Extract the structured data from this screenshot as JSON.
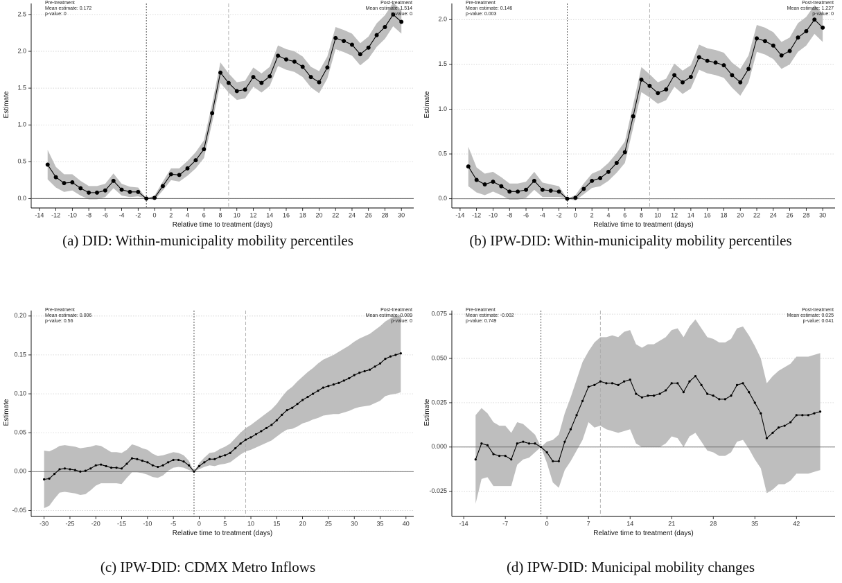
{
  "chart_data": [
    {
      "type": "line",
      "caption": "(a) DID: Within-municipality mobility percentiles",
      "ylabel": "Estimate",
      "xlabel": "Relative time to treatment (days)",
      "annotations": {
        "pre": [
          "Pre-treatment",
          "Mean estimate: 0.172",
          "p-value: 0"
        ],
        "post": [
          "Post-treatment",
          "Mean estimate: 1.514",
          "p-value: 0"
        ]
      },
      "xlim": [
        -15,
        31.5
      ],
      "xticks": [
        -14,
        -12,
        -10,
        -8,
        -6,
        -4,
        -2,
        0,
        2,
        4,
        6,
        8,
        10,
        12,
        14,
        16,
        18,
        20,
        22,
        24,
        26,
        28,
        30
      ],
      "ylim": [
        -0.1,
        2.65
      ],
      "yticks": [
        {
          "value": 0,
          "label": "0.0"
        },
        0.5,
        {
          "value": 1,
          "label": "1.0"
        },
        1.5,
        {
          "value": 2,
          "label": "2.0"
        },
        2.5
      ],
      "grid": true,
      "hline": 0,
      "vlines": [
        -1,
        9
      ],
      "marker_size": 3,
      "line_color": "#000000",
      "band_color": "#bebebe",
      "series": [
        {
          "x": [
            -13,
            -12,
            -11,
            -10,
            -9,
            -8,
            -7,
            -6,
            -5,
            -4,
            -3,
            -2,
            -1,
            0,
            1,
            2,
            3,
            4,
            5,
            6,
            7,
            8,
            9,
            10,
            11,
            12,
            13,
            14,
            15,
            16,
            17,
            18,
            19,
            20,
            21,
            22,
            23,
            24,
            25,
            26,
            27,
            28,
            29,
            30
          ],
          "values": [
            0.46,
            0.29,
            0.21,
            0.22,
            0.14,
            0.08,
            0.08,
            0.11,
            0.24,
            0.12,
            0.09,
            0.09,
            0.0,
            0.01,
            0.17,
            0.33,
            0.32,
            0.41,
            0.52,
            0.67,
            1.16,
            1.71,
            1.57,
            1.46,
            1.48,
            1.65,
            1.57,
            1.66,
            1.94,
            1.89,
            1.86,
            1.79,
            1.65,
            1.58,
            1.78,
            2.18,
            2.14,
            2.09,
            1.96,
            2.05,
            2.22,
            2.33,
            2.5,
            2.4
          ],
          "ci": [
            0.2,
            0.14,
            0.12,
            0.11,
            0.1,
            0.09,
            0.09,
            0.09,
            0.1,
            0.08,
            0.07,
            0.06,
            0.0,
            0.03,
            0.06,
            0.08,
            0.09,
            0.1,
            0.11,
            0.12,
            0.13,
            0.14,
            0.13,
            0.12,
            0.12,
            0.13,
            0.13,
            0.13,
            0.14,
            0.14,
            0.14,
            0.14,
            0.14,
            0.15,
            0.15,
            0.15,
            0.15,
            0.15,
            0.15,
            0.15,
            0.16,
            0.16,
            0.16,
            0.16
          ]
        }
      ]
    },
    {
      "type": "line",
      "caption": "(b) IPW-DID: Within-municipality mobility percentiles",
      "ylabel": "Estimate",
      "xlabel": "Relative time to treatment (days)",
      "annotations": {
        "pre": [
          "Pre-treatment",
          "Mean estimate: 0.146",
          "p-value: 0.003"
        ],
        "post": [
          "Post-treatment",
          "Mean estimate: 1.227",
          "p-value: 0"
        ]
      },
      "xlim": [
        -15,
        31.5
      ],
      "xticks": [
        -14,
        -12,
        -10,
        -8,
        -6,
        -4,
        -2,
        0,
        2,
        4,
        6,
        8,
        10,
        12,
        14,
        16,
        18,
        20,
        22,
        24,
        26,
        28,
        30
      ],
      "ylim": [
        -0.08,
        2.18
      ],
      "yticks": [
        {
          "value": 0,
          "label": "0.0"
        },
        0.5,
        {
          "value": 1,
          "label": "1.0"
        },
        1.5,
        {
          "value": 2,
          "label": "2.0"
        }
      ],
      "grid": true,
      "hline": 0,
      "vlines": [
        -1,
        9
      ],
      "marker_size": 3,
      "line_color": "#000000",
      "band_color": "#bebebe",
      "series": [
        {
          "x": [
            -13,
            -12,
            -11,
            -10,
            -9,
            -8,
            -7,
            -6,
            -5,
            -4,
            -3,
            -2,
            -1,
            0,
            1,
            2,
            3,
            4,
            5,
            6,
            7,
            8,
            9,
            10,
            11,
            12,
            13,
            14,
            15,
            16,
            17,
            18,
            19,
            20,
            21,
            22,
            23,
            24,
            25,
            26,
            27,
            28,
            29,
            30
          ],
          "values": [
            0.36,
            0.21,
            0.16,
            0.19,
            0.14,
            0.08,
            0.08,
            0.1,
            0.2,
            0.1,
            0.09,
            0.08,
            0.0,
            0.01,
            0.11,
            0.2,
            0.23,
            0.3,
            0.4,
            0.52,
            0.92,
            1.33,
            1.26,
            1.18,
            1.22,
            1.38,
            1.3,
            1.36,
            1.58,
            1.54,
            1.52,
            1.49,
            1.38,
            1.3,
            1.45,
            1.79,
            1.76,
            1.71,
            1.6,
            1.65,
            1.8,
            1.87,
            2.0,
            1.91
          ],
          "ci": [
            0.22,
            0.14,
            0.12,
            0.11,
            0.1,
            0.09,
            0.09,
            0.09,
            0.1,
            0.08,
            0.07,
            0.06,
            0.0,
            0.03,
            0.06,
            0.08,
            0.09,
            0.1,
            0.11,
            0.12,
            0.13,
            0.14,
            0.13,
            0.12,
            0.12,
            0.13,
            0.13,
            0.13,
            0.14,
            0.14,
            0.14,
            0.14,
            0.14,
            0.15,
            0.15,
            0.15,
            0.15,
            0.15,
            0.15,
            0.15,
            0.16,
            0.16,
            0.16,
            0.16
          ]
        }
      ]
    },
    {
      "type": "line",
      "caption": "(c) IPW-DID: CDMX Metro Inflows",
      "ylabel": "Estimate",
      "xlabel": "Relative time to treatment (days)",
      "annotations": {
        "pre": [
          "Pre-treatment",
          "Mean estimate: 0.006",
          "p-value: 0.56"
        ],
        "post": [
          "Post-treatment",
          "Mean estimate: 0.089",
          "p-value: 0"
        ]
      },
      "xlim": [
        -32.5,
        41.5
      ],
      "xticks": [
        -30,
        -25,
        -20,
        -15,
        -10,
        -5,
        0,
        5,
        10,
        15,
        20,
        25,
        30,
        35,
        40
      ],
      "ylim": [
        -0.055,
        0.207
      ],
      "yticks": [
        -0.05,
        {
          "value": 0,
          "label": "0.00"
        },
        0.05,
        {
          "value": 0.1,
          "label": "0.10"
        },
        0.15,
        {
          "value": 0.2,
          "label": "0.20"
        }
      ],
      "grid": true,
      "hline": 0,
      "vlines": [
        -1,
        9
      ],
      "marker_size": 1.6,
      "line_color": "#000000",
      "band_color": "#bebebe",
      "series": [
        {
          "x": [
            -30,
            -29,
            -28,
            -27,
            -26,
            -25,
            -24,
            -23,
            -22,
            -21,
            -20,
            -19,
            -18,
            -17,
            -16,
            -15,
            -14,
            -13,
            -12,
            -11,
            -10,
            -9,
            -8,
            -7,
            -6,
            -5,
            -4,
            -3,
            -2,
            -1,
            0,
            1,
            2,
            3,
            4,
            5,
            6,
            7,
            8,
            9,
            10,
            11,
            12,
            13,
            14,
            15,
            16,
            17,
            18,
            19,
            20,
            21,
            22,
            23,
            24,
            25,
            26,
            27,
            28,
            29,
            30,
            31,
            32,
            33,
            34,
            35,
            36,
            37,
            38,
            39
          ],
          "values": [
            -0.01,
            -0.009,
            -0.003,
            0.003,
            0.004,
            0.003,
            0.002,
            0.0,
            0.001,
            0.004,
            0.008,
            0.009,
            0.007,
            0.005,
            0.005,
            0.004,
            0.01,
            0.017,
            0.016,
            0.014,
            0.012,
            0.008,
            0.006,
            0.008,
            0.012,
            0.015,
            0.015,
            0.013,
            0.008,
            0.0,
            0.007,
            0.012,
            0.016,
            0.016,
            0.019,
            0.021,
            0.024,
            0.03,
            0.036,
            0.041,
            0.044,
            0.048,
            0.052,
            0.056,
            0.06,
            0.066,
            0.073,
            0.079,
            0.082,
            0.087,
            0.092,
            0.096,
            0.1,
            0.104,
            0.108,
            0.11,
            0.112,
            0.114,
            0.117,
            0.12,
            0.124,
            0.127,
            0.129,
            0.131,
            0.135,
            0.139,
            0.145,
            0.148,
            0.15,
            0.152
          ],
          "ci": [
            0.037,
            0.035,
            0.032,
            0.03,
            0.03,
            0.03,
            0.03,
            0.03,
            0.03,
            0.028,
            0.026,
            0.024,
            0.022,
            0.02,
            0.02,
            0.02,
            0.018,
            0.018,
            0.017,
            0.016,
            0.016,
            0.015,
            0.014,
            0.013,
            0.011,
            0.01,
            0.009,
            0.008,
            0.006,
            0.0,
            0.004,
            0.006,
            0.008,
            0.009,
            0.01,
            0.011,
            0.012,
            0.013,
            0.014,
            0.015,
            0.016,
            0.017,
            0.018,
            0.019,
            0.02,
            0.021,
            0.023,
            0.025,
            0.027,
            0.029,
            0.03,
            0.032,
            0.033,
            0.035,
            0.036,
            0.037,
            0.038,
            0.04,
            0.041,
            0.042,
            0.043,
            0.044,
            0.045,
            0.046,
            0.047,
            0.048,
            0.048,
            0.049,
            0.05,
            0.05
          ]
        }
      ]
    },
    {
      "type": "line",
      "caption": "(d) IPW-DID: Municipal mobility changes",
      "ylabel": "Estimate",
      "xlabel": "Relative time to treatment (days)",
      "annotations": {
        "pre": [
          "Pre-treatment",
          "Mean estimate: -0.002",
          "p-value: 0.749"
        ],
        "post": [
          "Post-treatment",
          "Mean estimate: 0.025",
          "p-value: 0.041"
        ]
      },
      "xlim": [
        -16,
        48.5
      ],
      "xticks": [
        -14,
        -7,
        0,
        7,
        14,
        21,
        28,
        35,
        42
      ],
      "ylim": [
        -0.038,
        0.077
      ],
      "yticks": [
        -0.025,
        {
          "value": 0,
          "label": "0.000"
        },
        0.025,
        {
          "value": 0.05,
          "label": "0.050"
        },
        0.075
      ],
      "grid": true,
      "hline": 0,
      "vlines": [
        -1,
        9
      ],
      "marker_size": 1.6,
      "line_color": "#000000",
      "band_color": "#bebebe",
      "series": [
        {
          "x": [
            -12,
            -11,
            -10,
            -9,
            -8,
            -7,
            -6,
            -5,
            -4,
            -3,
            -2,
            -1,
            0,
            1,
            2,
            3,
            4,
            5,
            6,
            7,
            8,
            9,
            10,
            11,
            12,
            13,
            14,
            15,
            16,
            17,
            18,
            19,
            20,
            21,
            22,
            23,
            24,
            25,
            26,
            27,
            28,
            29,
            30,
            31,
            32,
            33,
            34,
            35,
            36,
            37,
            38,
            39,
            40,
            41,
            42,
            43,
            44,
            45,
            46
          ],
          "values": [
            -0.007,
            0.002,
            0.001,
            -0.004,
            -0.005,
            -0.005,
            -0.007,
            0.002,
            0.003,
            0.002,
            0.002,
            0.0,
            -0.003,
            -0.008,
            -0.008,
            0.003,
            0.01,
            0.018,
            0.026,
            0.034,
            0.035,
            0.037,
            0.036,
            0.036,
            0.035,
            0.037,
            0.038,
            0.03,
            0.028,
            0.029,
            0.029,
            0.03,
            0.032,
            0.036,
            0.036,
            0.031,
            0.037,
            0.04,
            0.035,
            0.03,
            0.029,
            0.027,
            0.027,
            0.029,
            0.035,
            0.036,
            0.031,
            0.025,
            0.019,
            0.005,
            0.008,
            0.011,
            0.012,
            0.014,
            0.018,
            0.018,
            0.018,
            0.019,
            0.02
          ],
          "ci": [
            0.025,
            0.02,
            0.018,
            0.018,
            0.017,
            0.017,
            0.015,
            0.012,
            0.01,
            0.008,
            0.005,
            0.0,
            0.006,
            0.012,
            0.015,
            0.016,
            0.018,
            0.02,
            0.022,
            0.02,
            0.024,
            0.025,
            0.026,
            0.027,
            0.027,
            0.028,
            0.028,
            0.028,
            0.028,
            0.029,
            0.029,
            0.03,
            0.03,
            0.03,
            0.031,
            0.031,
            0.031,
            0.032,
            0.032,
            0.032,
            0.032,
            0.032,
            0.032,
            0.032,
            0.032,
            0.032,
            0.032,
            0.032,
            0.031,
            0.031,
            0.032,
            0.032,
            0.033,
            0.033,
            0.033,
            0.033,
            0.033,
            0.033,
            0.033
          ]
        }
      ]
    }
  ]
}
